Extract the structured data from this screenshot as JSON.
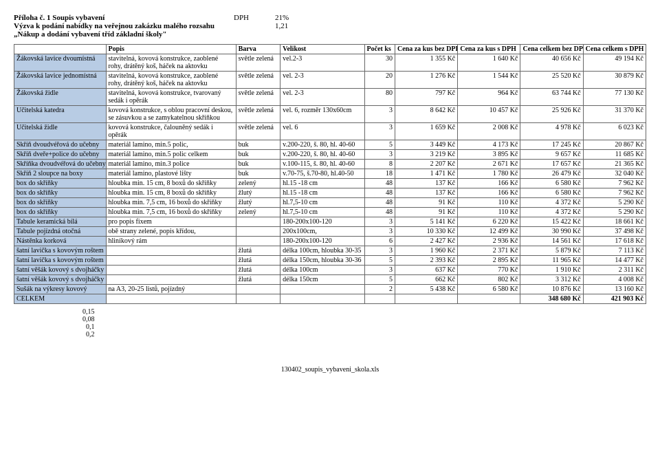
{
  "header": {
    "line1": "Příloha č. 1 Soupis vybavení",
    "line2": "Výzva k podání nabídky na veřejnou zakázku malého rozsahu",
    "line3": "„Nákup a dodání vybavení tříd základní školy\"",
    "dph_label": "DPH",
    "dph_val": "21%",
    "mult": "1,21"
  },
  "columns": {
    "name": "",
    "popis": "Popis",
    "barva": "Barva",
    "velikost": "Velikost",
    "pocet": "Počet ks",
    "cena1": "Cena za kus bez DPH",
    "cena2": "Cena za kus s DPH",
    "cena3": "Cena celkem bez DPH",
    "cena4": "Cena celkem s DPH"
  },
  "rows": [
    {
      "hl": true,
      "name": "Žákovská lavice dvoumístná",
      "popis": "stavitelná, kovová konstrukce, zaoblené rohy, drátěný koš, háček na aktovku",
      "barva": "světle zelená",
      "velikost": "vel.2-3",
      "pocet": "30",
      "c1": "1 355 Kč",
      "c2": "1 640 Kč",
      "c3": "40 656 Kč",
      "c4": "49 194 Kč"
    },
    {
      "hl": true,
      "name": "Žákovská lavice jednomístná",
      "popis": "stavitelná, kovová konstrukce, zaoblené rohy, drátěný koš, háček na aktovku",
      "barva": "světle zelená",
      "velikost": "vel. 2-3",
      "pocet": "20",
      "c1": "1 276 Kč",
      "c2": "1 544 Kč",
      "c3": "25 520 Kč",
      "c4": "30 879 Kč"
    },
    {
      "hl": true,
      "name": "Žákovská židle",
      "popis": "stavitelná, kovová konstrukce, tvarovaný sedák i opěrák",
      "barva": "světle zelená",
      "velikost": "vel. 2-3",
      "pocet": "80",
      "c1": "797 Kč",
      "c2": "964 Kč",
      "c3": "63 744 Kč",
      "c4": "77 130 Kč"
    },
    {
      "hl": true,
      "name": "Učitelská katedra",
      "popis": "kovová konstrukce, s oblou pracovní deskou,  se zásuvkou a se zamykatelnou skříňkou",
      "barva": "světle zelená",
      "velikost": "vel. 6, rozměr 130x60cm",
      "pocet": "3",
      "c1": "8 642 Kč",
      "c2": "10 457 Kč",
      "c3": "25 926 Kč",
      "c4": "31 370 Kč"
    },
    {
      "hl": true,
      "name": "Učitelská židle",
      "popis": "kovová konstrukce, čalouněný sedák i opěrák",
      "barva": "světle zelená",
      "velikost": "vel. 6",
      "pocet": "3",
      "c1": "1 659 Kč",
      "c2": "2 008 Kč",
      "c3": "4 978 Kč",
      "c4": "6 023 Kč"
    },
    {
      "hl": true,
      "name": "Skříň dvoudvéřová do učebny",
      "popis": "materiál lamino, min.5 polic,",
      "barva": "buk",
      "velikost": "v.200-220, š. 80, hl. 40-60",
      "pocet": "5",
      "c1": "3 449 Kč",
      "c2": "4 173 Kč",
      "c3": "17 245 Kč",
      "c4": "20 867 Kč"
    },
    {
      "hl": true,
      "name": "Skříň dveře+police do učebny",
      "popis": "materiál lamino, min.5 polic celkem",
      "barva": "buk",
      "velikost": "v.200-220, š. 80, hl. 40-60",
      "pocet": "3",
      "c1": "3 219 Kč",
      "c2": "3 895 Kč",
      "c3": "9 657 Kč",
      "c4": "11 685 Kč"
    },
    {
      "hl": true,
      "name": "Skříňka dvoudvéřová do učebny",
      "popis": "materiál lamino, min.3 police",
      "barva": "buk",
      "velikost": "v.100-115, š. 80, hl. 40-60",
      "pocet": "8",
      "c1": "2 207 Kč",
      "c2": "2 671 Kč",
      "c3": "17 657 Kč",
      "c4": "21 365 Kč"
    },
    {
      "hl": true,
      "name": "Skříň 2 sloupce na boxy",
      "popis": "materiál lamino, plastové lišty",
      "barva": "buk",
      "velikost": "v.70-75, š.70-80, hl.40-50",
      "pocet": "18",
      "c1": "1 471 Kč",
      "c2": "1 780 Kč",
      "c3": "26 479 Kč",
      "c4": "32 040 Kč"
    },
    {
      "hl": true,
      "name": "box do skříňky",
      "popis": "hloubka min. 15 cm, 8 boxů do skříňky",
      "barva": "zelený",
      "velikost": "hl.15 -18 cm",
      "pocet": "48",
      "c1": "137 Kč",
      "c2": "166 Kč",
      "c3": "6 580 Kč",
      "c4": "7 962 Kč"
    },
    {
      "hl": true,
      "name": "box do skříňky",
      "popis": "hloubka min. 15 cm, 8 boxů do skříňky",
      "barva": "žlutý",
      "velikost": "hl.15 -18 cm",
      "pocet": "48",
      "c1": "137 Kč",
      "c2": "166 Kč",
      "c3": "6 580 Kč",
      "c4": "7 962 Kč"
    },
    {
      "hl": true,
      "name": "box do skříňky",
      "popis": "hloubka min. 7,5 cm, 16 boxů do skříňky",
      "barva": "žlutý",
      "velikost": "hl.7,5-10 cm",
      "pocet": "48",
      "c1": "91 Kč",
      "c2": "110 Kč",
      "c3": "4 372 Kč",
      "c4": "5 290 Kč"
    },
    {
      "hl": true,
      "name": "box do skříňky",
      "popis": "hloubka min. 7,5 cm, 16 boxů do skříňky",
      "barva": "zelený",
      "velikost": "hl.7,5-10 cm",
      "pocet": "48",
      "c1": "91 Kč",
      "c2": "110 Kč",
      "c3": "4 372 Kč",
      "c4": "5 290 Kč"
    },
    {
      "hl": true,
      "name": "Tabule keramická bílá",
      "popis": "pro popis fixem",
      "barva": "",
      "velikost": "180-200x100-120",
      "pocet": "3",
      "c1": "5 141 Kč",
      "c2": "6 220 Kč",
      "c3": "15 422 Kč",
      "c4": "18 661 Kč"
    },
    {
      "hl": true,
      "name": "Tabule pojízdná otočná",
      "popis": "obě strany zelené, popis křídou,",
      "barva": "",
      "velikost": "200x100cm,",
      "pocet": "3",
      "c1": "10 330 Kč",
      "c2": "12 499 Kč",
      "c3": "30 990 Kč",
      "c4": "37 498 Kč"
    },
    {
      "hl": true,
      "name": "Nástěnka korková",
      "popis": "hliníkový rám",
      "barva": "",
      "velikost": "180-200x100-120",
      "pocet": "6",
      "c1": "2 427 Kč",
      "c2": "2 936 Kč",
      "c3": "14 561 Kč",
      "c4": "17 618 Kč"
    },
    {
      "hl": true,
      "name": "šatní lavička s kovovým roštem",
      "popis": "",
      "barva": "žlutá",
      "velikost": "délka 100cm, hloubka 30-35",
      "pocet": "3",
      "c1": "1 960 Kč",
      "c2": "2 371 Kč",
      "c3": "5 879 Kč",
      "c4": "7 113 Kč"
    },
    {
      "hl": true,
      "name": "šatní lavička s kovovým roštem",
      "popis": "",
      "barva": "žlutá",
      "velikost": "délka 150cm, hloubka 30-36",
      "pocet": "5",
      "c1": "2 393 Kč",
      "c2": "2 895 Kč",
      "c3": "11 965 Kč",
      "c4": "14 477 Kč"
    },
    {
      "hl": true,
      "name": "šatní věšák kovový s dvojháčky",
      "popis": "",
      "barva": "žlutá",
      "velikost": "délka 100cm",
      "pocet": "3",
      "c1": "637 Kč",
      "c2": "770 Kč",
      "c3": "1 910 Kč",
      "c4": "2 311 Kč"
    },
    {
      "hl": true,
      "name": "šatní věšák kovový s dvojháčky",
      "popis": "",
      "barva": "žlutá",
      "velikost": "délka 150cm",
      "pocet": "5",
      "c1": "662 Kč",
      "c2": "802 Kč",
      "c3": "3 312 Kč",
      "c4": "4 008 Kč"
    },
    {
      "hl": true,
      "name": "Sušák na výkresy kovový",
      "popis": "na A3, 20-25 listů, pojízdný",
      "barva": "",
      "velikost": "",
      "pocet": "2",
      "c1": "5 438 Kč",
      "c2": "6 580 Kč",
      "c3": "10 876 Kč",
      "c4": "13 160 Kč"
    }
  ],
  "total": {
    "label": "CELKEM",
    "c3": "348 680 Kč",
    "c4": "421 903 Kč"
  },
  "footer_nums": [
    "0,15",
    "0,08",
    "0,1",
    "0,2"
  ],
  "footer_file": "130402_soupis_vybaveni_skola.xls",
  "colors": {
    "highlight": "#b8cce4",
    "border": "#666666"
  }
}
